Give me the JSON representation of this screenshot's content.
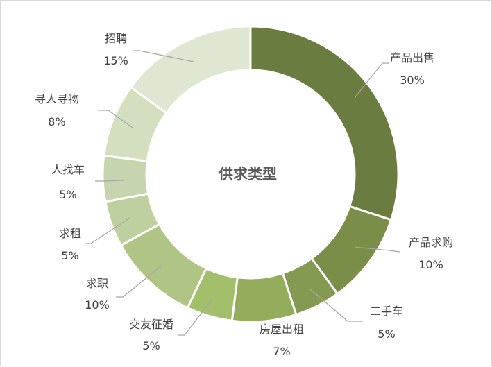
{
  "chart_data": {
    "type": "pie",
    "subtype": "donut",
    "title": "供求类型",
    "categories": [
      "产品出售",
      "产品求购",
      "二手车",
      "房屋出租",
      "交友征婚",
      "求职",
      "求租",
      "人找车",
      "寻人寻物",
      "招聘"
    ],
    "values": [
      30,
      10,
      5,
      7,
      5,
      10,
      5,
      5,
      8,
      15
    ],
    "value_labels": [
      "30%",
      "10%",
      "5%",
      "7%",
      "5%",
      "10%",
      "5%",
      "5%",
      "8%",
      "15%"
    ],
    "colors": [
      "#6b7c40",
      "#7a8e4a",
      "#849a52",
      "#93ad5c",
      "#a3bf6b",
      "#b0c585",
      "#bfd0a0",
      "#c7d5ae",
      "#d4dfc0",
      "#dfe7d2"
    ],
    "legend": "none",
    "labels_outside": true
  }
}
